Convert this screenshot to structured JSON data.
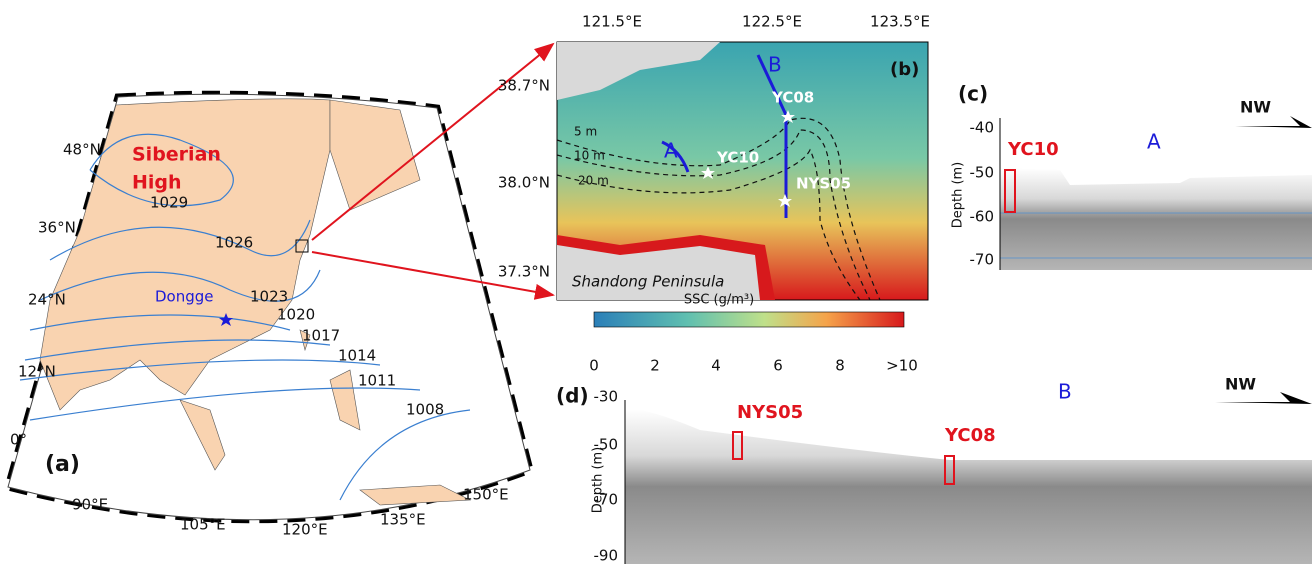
{
  "panel_a": {
    "label": "(a)",
    "lat_labels": [
      "48°N",
      "36°N",
      "24°N",
      "12°N",
      "0°"
    ],
    "lon_labels": [
      "90°E",
      "105°E",
      "120°E",
      "135°E",
      "150°E"
    ],
    "isobars": [
      "1029",
      "1026",
      "1023",
      "1020",
      "1017",
      "1014",
      "1011",
      "1008"
    ],
    "high_label": [
      "Siberian",
      "High"
    ],
    "site": "Dongge"
  },
  "panel_b": {
    "label": "(b)",
    "lon_labels": [
      "121.5°E",
      "122.5°E",
      "123.5°E"
    ],
    "lat_labels": [
      "38.7°N",
      "38.0°N",
      "37.3°N"
    ],
    "line_a": "A",
    "line_b": "B",
    "sites": [
      "YC08",
      "YC10",
      "NYS05"
    ],
    "depths": [
      "5 m",
      "10 m",
      "20 m"
    ],
    "place": "Shandong Peninsula",
    "colorbar_title": "SSC (g/m³)",
    "colorbar_ticks": [
      "0",
      "2",
      "4",
      "6",
      "8",
      ">10"
    ]
  },
  "panel_c": {
    "label": "(c)",
    "yticks": [
      "-40",
      "-50",
      "-60",
      "-70"
    ],
    "ylabel": "Depth (m)",
    "site": "YC10",
    "line": "A",
    "direction": "NW"
  },
  "panel_d": {
    "label": "(d)",
    "yticks": [
      "-30",
      "-50",
      "-70",
      "-90"
    ],
    "ylabel": "Depth (m)",
    "sites": [
      "NYS05",
      "YC08"
    ],
    "line": "B",
    "direction": "NW"
  }
}
